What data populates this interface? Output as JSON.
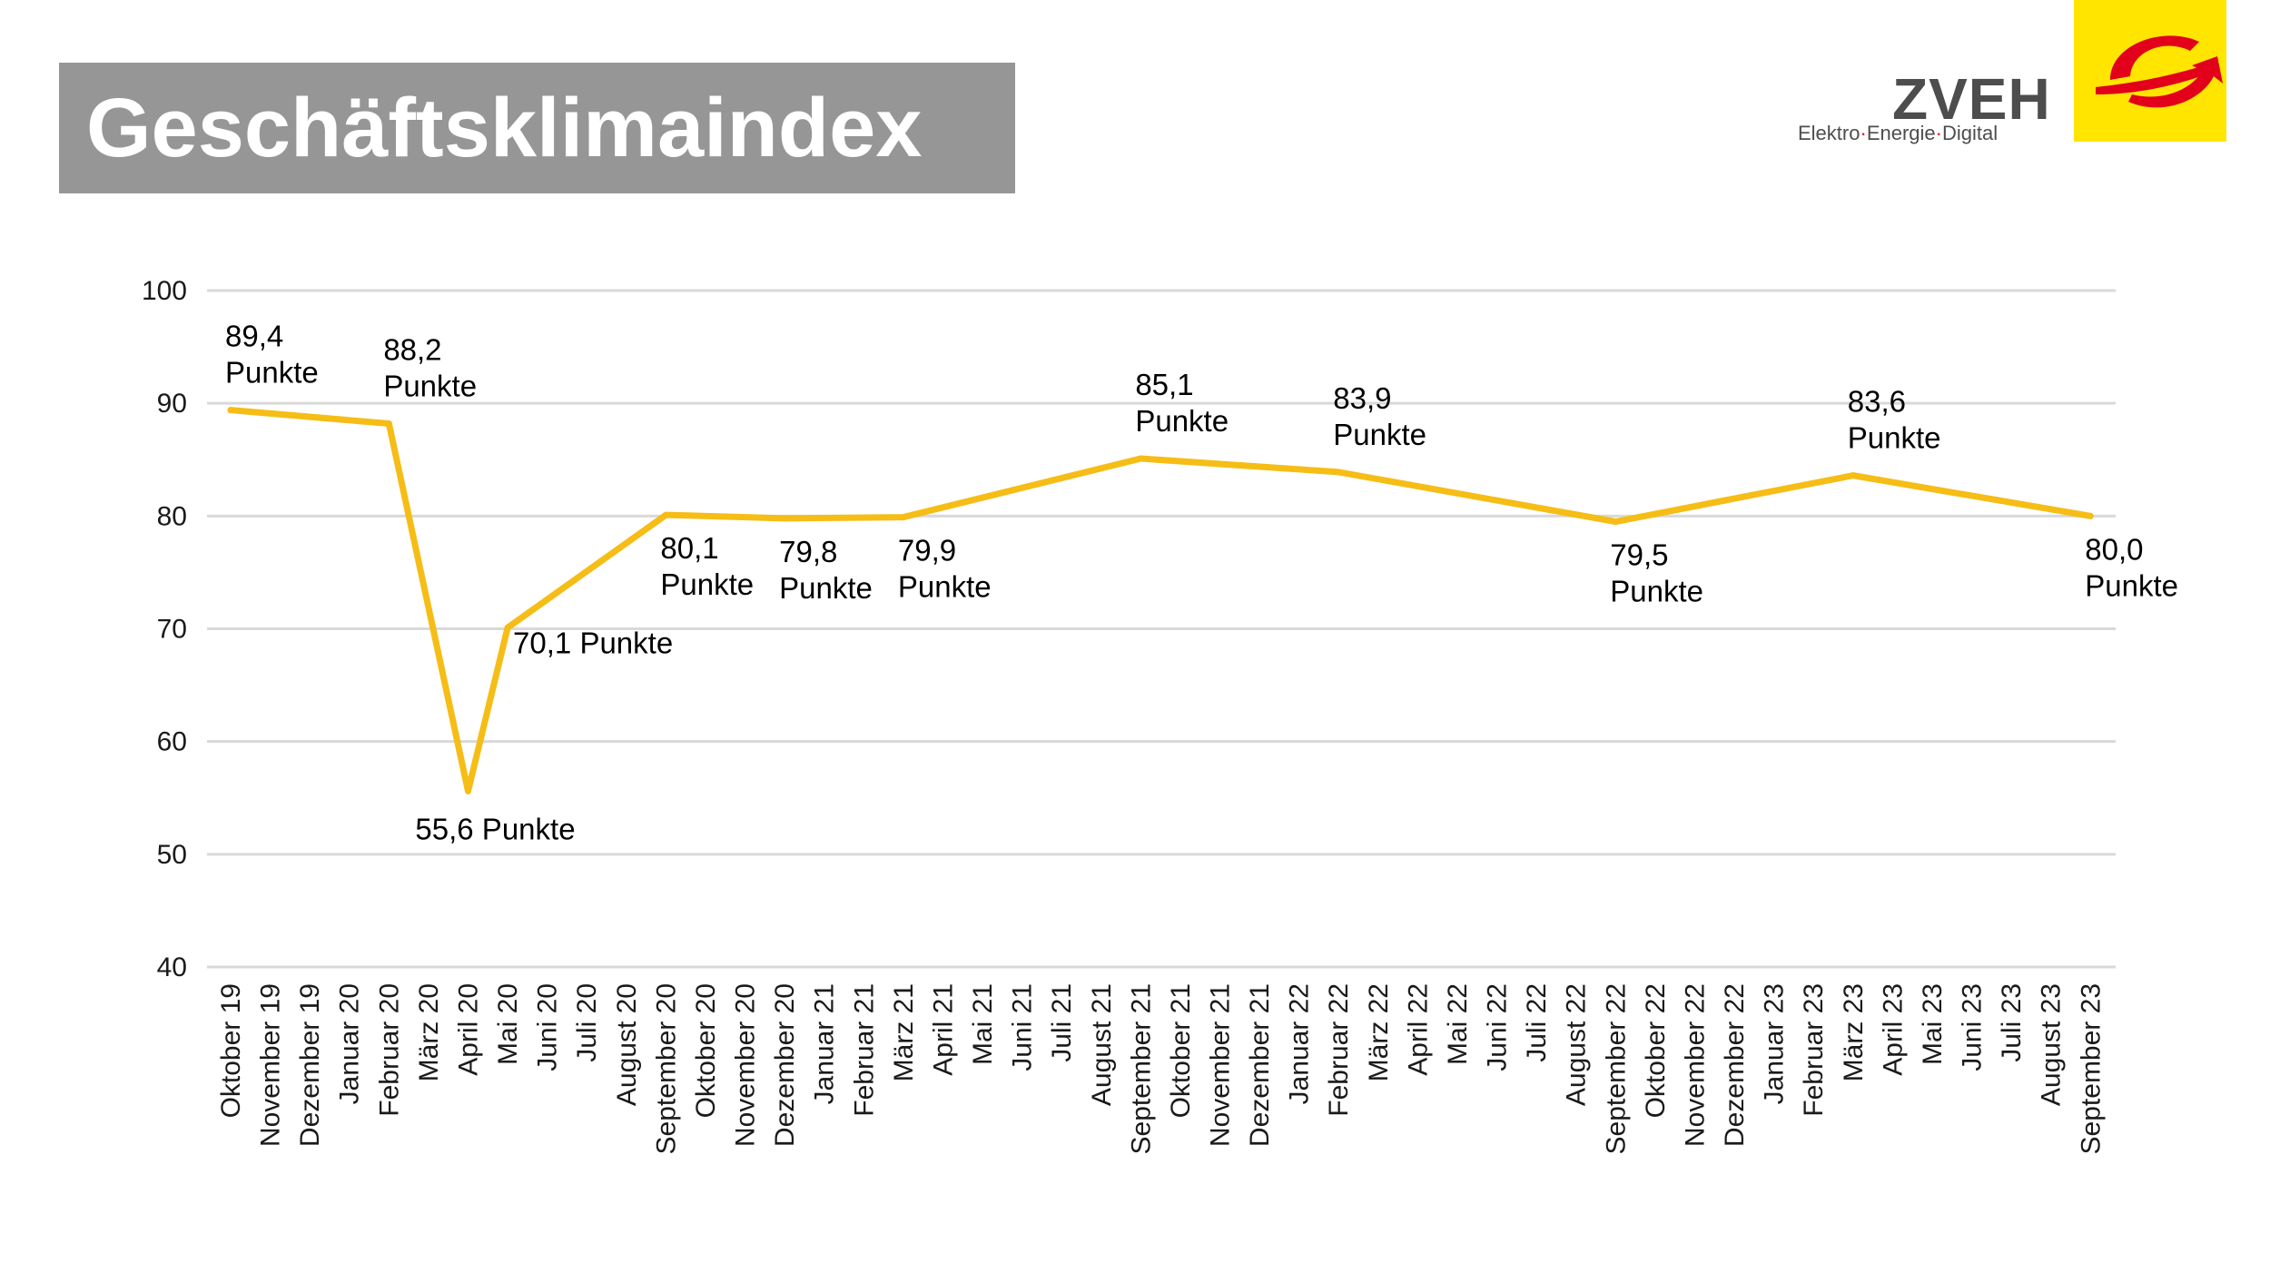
{
  "header": {
    "title": "Geschäftsklimaindex"
  },
  "logo": {
    "wordmark": "ZVEH",
    "tagline_parts": [
      "Elektro",
      "Energie",
      "Digital"
    ],
    "tagline_separator": "·",
    "colors": {
      "square": "#ffe500",
      "swoosh": "#e2001a",
      "text": "#4d4d4d"
    }
  },
  "colors": {
    "line": "#f5bd16",
    "grid": "#d9d9d9",
    "title_bg": "#969696",
    "text": "#000000",
    "axis_text": "#1a1a1a"
  },
  "chart_data": {
    "type": "line",
    "title": "",
    "xlabel": "",
    "ylabel": "",
    "ylim": [
      40,
      100
    ],
    "yticks": [
      40,
      50,
      60,
      70,
      80,
      90,
      100
    ],
    "grid": true,
    "categories": [
      "Oktober 19",
      "November 19",
      "Dezember 19",
      "Januar 20",
      "Februar 20",
      "März 20",
      "April 20",
      "Mai 20",
      "Juni 20",
      "Juli 20",
      "August 20",
      "September 20",
      "Oktober 20",
      "November 20",
      "Dezember 20",
      "Januar 21",
      "Februar 21",
      "März 21",
      "April 21",
      "Mai 21",
      "Juni 21",
      "Juli 21",
      "August 21",
      "September 21",
      "Oktober 21",
      "November 21",
      "Dezember 21",
      "Januar 22",
      "Februar 22",
      "März 22",
      "April 22",
      "Mai 22",
      "Juni 22",
      "Juli 22",
      "August 22",
      "September 22",
      "Oktober 22",
      "November 22",
      "Dezember 22",
      "Januar 23",
      "Februar 23",
      "März 23",
      "April 23",
      "Mai 23",
      "Juni 23",
      "Juli 23",
      "August 23",
      "September 23"
    ],
    "points": [
      {
        "x": "Oktober 19",
        "y": 89.4,
        "label": [
          "89,4",
          "Punkte"
        ],
        "pos": "above"
      },
      {
        "x": "Februar 20",
        "y": 88.2,
        "label": [
          "88,2",
          "Punkte"
        ],
        "pos": "above"
      },
      {
        "x": "April 20",
        "y": 55.6,
        "label": [
          "55,6 Punkte"
        ],
        "pos": "below"
      },
      {
        "x": "Mai 20",
        "y": 70.1,
        "label": [
          "70,1 Punkte"
        ],
        "pos": "right"
      },
      {
        "x": "September 20",
        "y": 80.1,
        "label": [
          "80,1",
          "Punkte"
        ],
        "pos": "below"
      },
      {
        "x": "Dezember 20",
        "y": 79.8,
        "label": [
          "79,8",
          "Punkte"
        ],
        "pos": "below"
      },
      {
        "x": "März 21",
        "y": 79.9,
        "label": [
          "79,9",
          "Punkte"
        ],
        "pos": "below"
      },
      {
        "x": "September 21",
        "y": 85.1,
        "label": [
          "85,1",
          "Punkte"
        ],
        "pos": "above"
      },
      {
        "x": "Februar 22",
        "y": 83.9,
        "label": [
          "83,9",
          "Punkte"
        ],
        "pos": "above"
      },
      {
        "x": "September 22",
        "y": 79.5,
        "label": [
          "79,5",
          "Punkte"
        ],
        "pos": "below"
      },
      {
        "x": "März 23",
        "y": 83.6,
        "label": [
          "83,6",
          "Punkte"
        ],
        "pos": "above"
      },
      {
        "x": "September 23",
        "y": 80.0,
        "label": [
          "80,0",
          "Punkte"
        ],
        "pos": "below"
      }
    ]
  }
}
